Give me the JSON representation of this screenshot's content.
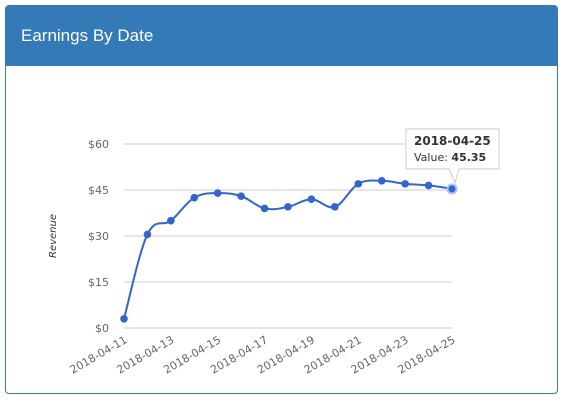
{
  "panel": {
    "title": "Earnings By Date"
  },
  "colors": {
    "header": "#337ab7",
    "line": "#3366cc",
    "grid": "#cccccc",
    "tick_text": "#666666"
  },
  "chart_data": {
    "type": "line",
    "title": "Earnings By Date",
    "ylabel": "Revenue",
    "xlabel": "",
    "ylim": [
      0,
      60
    ],
    "y_ticks": [
      "$0",
      "$15",
      "$30",
      "$45",
      "$60"
    ],
    "y_tick_values": [
      0,
      15,
      30,
      45,
      60
    ],
    "x_tick_labels": [
      "2018-04-11",
      "2018-04-13",
      "2018-04-15",
      "2018-04-17",
      "2018-04-19",
      "2018-04-21",
      "2018-04-23",
      "2018-04-25"
    ],
    "grid": true,
    "legend": "none",
    "series": [
      {
        "x": [
          "2018-04-11",
          "2018-04-12",
          "2018-04-13",
          "2018-04-14",
          "2018-04-15",
          "2018-04-16",
          "2018-04-17",
          "2018-04-18",
          "2018-04-19",
          "2018-04-20",
          "2018-04-21",
          "2018-04-22",
          "2018-04-23",
          "2018-04-24",
          "2018-04-25"
        ],
        "values": [
          3,
          30.5,
          35,
          42.5,
          44,
          43,
          39,
          39.5,
          42,
          39.5,
          47,
          48,
          47,
          46.5,
          45.35
        ]
      }
    ],
    "tooltip": {
      "date": "2018-04-25",
      "label": "Value:",
      "value": "45.35"
    }
  }
}
